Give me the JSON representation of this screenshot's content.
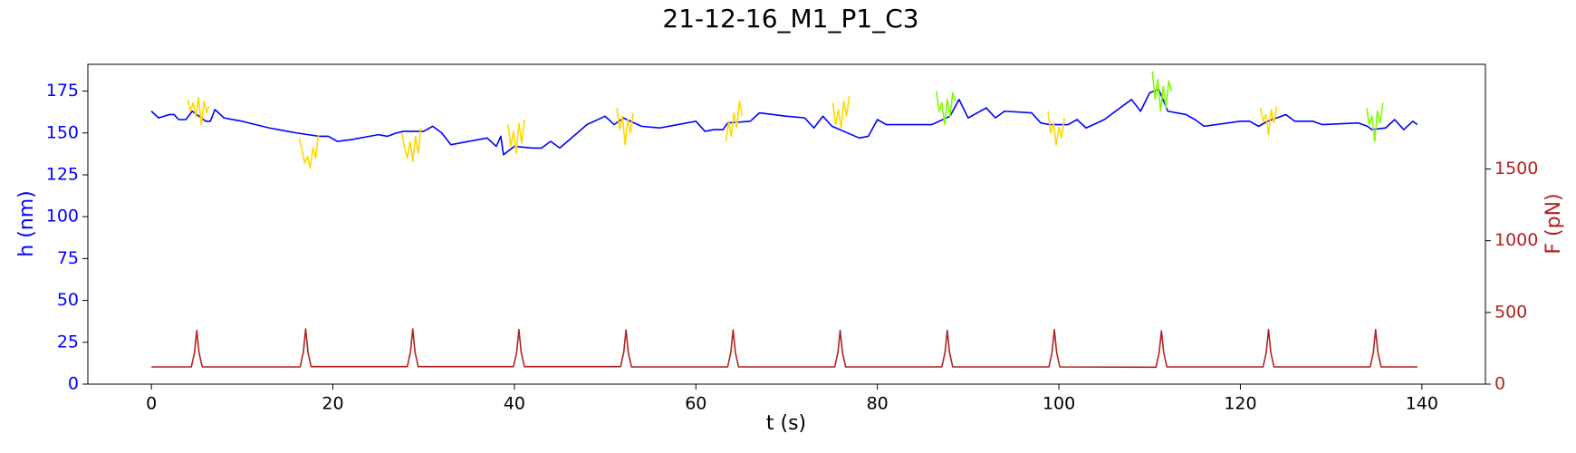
{
  "chart_data": {
    "type": "line",
    "title": "21-12-16_M1_P1_C3",
    "x_label": "t (s)",
    "y_label": "h (nm)",
    "y2_label": "F (pN)",
    "xlim": [
      -7,
      147
    ],
    "xticks": [
      0,
      20,
      40,
      60,
      80,
      100,
      120,
      140
    ],
    "ylim": [
      0,
      191
    ],
    "yticks": [
      0,
      25,
      50,
      75,
      100,
      125,
      150,
      175
    ],
    "y2lim": [
      0,
      2230
    ],
    "y2ticks": [
      0,
      500,
      1000,
      1500
    ],
    "y_color": "#0000ff",
    "y2_color": "#b22222",
    "series": [
      {
        "color": "#0000ff",
        "x": [
          0,
          0.8,
          2,
          2.5,
          3,
          3.8,
          4.5,
          6,
          6.5,
          7,
          8,
          10,
          13,
          15,
          16,
          18.5,
          19.5,
          20.5,
          22,
          25,
          26,
          27,
          27.8,
          30,
          31,
          32,
          33,
          37,
          38,
          38.5,
          38.8,
          40,
          42,
          43,
          44,
          45,
          48,
          50,
          51,
          52,
          54,
          56,
          58,
          60,
          61,
          62,
          63,
          63.5,
          66,
          67,
          70,
          72,
          73,
          74,
          75,
          78,
          79,
          80,
          81,
          84,
          86,
          88,
          89,
          90,
          92,
          93,
          94,
          97,
          98,
          99,
          101,
          102,
          103,
          105,
          108,
          109,
          110,
          111,
          112,
          114,
          115,
          116,
          120,
          121,
          122,
          123,
          125,
          126,
          128,
          129,
          133,
          134,
          134.5,
          136,
          137,
          138,
          139,
          139.5
        ],
        "values": [
          163,
          159,
          161,
          161,
          158,
          158,
          163,
          157,
          157,
          164,
          159,
          157,
          153,
          151,
          150,
          148,
          148,
          145,
          146,
          149,
          148,
          150,
          151,
          151,
          154,
          150,
          143,
          147,
          142,
          148,
          137,
          142,
          141,
          141,
          145,
          141,
          155,
          160,
          155,
          159,
          154,
          153,
          155,
          157,
          151,
          152,
          152,
          156,
          157,
          162,
          160,
          159,
          153,
          160,
          154,
          147,
          148,
          158,
          155,
          155,
          155,
          160,
          170,
          159,
          165,
          159,
          163,
          162,
          156,
          155,
          155,
          158,
          153,
          158,
          170,
          163,
          174,
          176,
          163,
          161,
          158,
          154,
          157,
          157,
          154,
          157,
          161,
          157,
          157,
          155,
          156,
          154,
          152,
          153,
          158,
          152,
          157,
          155
        ]
      },
      {
        "color": "#ffd700",
        "x": [
          4,
          4.3,
          4.6,
          4.9,
          5.2,
          5.5,
          5.8,
          6.1,
          6.3
        ],
        "values": [
          170,
          163,
          168,
          160,
          171,
          155,
          169,
          162,
          166
        ]
      },
      {
        "color": "#ffd700",
        "x": [
          16.3,
          16.6,
          16.9,
          17.2,
          17.5,
          17.8,
          18.1,
          18.4
        ],
        "values": [
          147,
          140,
          132,
          136,
          129,
          141,
          135,
          149
        ]
      },
      {
        "color": "#ffd700",
        "x": [
          27.6,
          27.9,
          28.2,
          28.5,
          28.8,
          29.1,
          29.4,
          29.7
        ],
        "values": [
          150,
          141,
          135,
          145,
          133,
          148,
          138,
          153
        ]
      },
      {
        "color": "#ffd700",
        "x": [
          39.3,
          39.6,
          39.9,
          40.2,
          40.5,
          40.8,
          41.1
        ],
        "values": [
          155,
          142,
          151,
          138,
          156,
          144,
          158
        ]
      },
      {
        "color": "#ffd700",
        "x": [
          51.3,
          51.6,
          51.9,
          52.2,
          52.5,
          52.8,
          53.1
        ],
        "values": [
          165,
          152,
          160,
          143,
          158,
          150,
          162
        ]
      },
      {
        "color": "#ffd700",
        "x": [
          63.3,
          63.6,
          63.9,
          64.2,
          64.5,
          64.8,
          65.1
        ],
        "values": [
          145,
          157,
          148,
          162,
          153,
          169,
          160
        ]
      },
      {
        "color": "#ffd700",
        "x": [
          75.1,
          75.4,
          75.7,
          76,
          76.3,
          76.6,
          76.9
        ],
        "values": [
          168,
          155,
          164,
          153,
          169,
          160,
          172
        ]
      },
      {
        "color": "#7cfc00",
        "x": [
          86.5,
          86.8,
          87.1,
          87.4,
          87.7,
          88,
          88.3,
          88.6
        ],
        "values": [
          175,
          163,
          168,
          155,
          170,
          160,
          174,
          169
        ]
      },
      {
        "color": "#ffd700",
        "x": [
          98.8,
          99.1,
          99.4,
          99.7,
          100,
          100.3,
          100.6
        ],
        "values": [
          163,
          150,
          156,
          143,
          153,
          147,
          159
        ]
      },
      {
        "color": "#7cfc00",
        "x": [
          110.3,
          110.6,
          110.9,
          111.2,
          111.5,
          111.8,
          112.1,
          112.4
        ],
        "values": [
          187,
          170,
          182,
          163,
          178,
          165,
          181,
          175
        ]
      },
      {
        "color": "#ffd700",
        "x": [
          122.2,
          122.5,
          122.8,
          123.1,
          123.4,
          123.7,
          124
        ],
        "values": [
          165,
          157,
          161,
          149,
          164,
          156,
          166
        ]
      },
      {
        "color": "#7cfc00",
        "x": [
          133.9,
          134.2,
          134.5,
          134.8,
          135.1,
          135.4,
          135.7
        ],
        "values": [
          165,
          155,
          160,
          145,
          163,
          156,
          168
        ]
      },
      {
        "color": "#b22222",
        "axis": "y2",
        "x": [
          0,
          4.4,
          4.75,
          5,
          5.25,
          5.6,
          16.4,
          16.75,
          17,
          17.25,
          17.6,
          28.2,
          28.55,
          28.8,
          29.05,
          29.4,
          39.9,
          40.25,
          40.5,
          40.75,
          41.1,
          51.7,
          52.05,
          52.3,
          52.55,
          52.9,
          63.5,
          63.85,
          64.1,
          64.35,
          64.7,
          75.3,
          75.65,
          75.9,
          76.15,
          76.5,
          87.1,
          87.45,
          87.7,
          87.95,
          88.3,
          98.9,
          99.25,
          99.5,
          99.75,
          100.1,
          110.7,
          111.05,
          111.3,
          111.55,
          111.9,
          122.5,
          122.85,
          123.1,
          123.35,
          123.7,
          134.3,
          134.65,
          134.9,
          135.15,
          135.5,
          139.5
        ],
        "values": [
          120,
          120,
          220,
          375,
          220,
          120,
          120,
          225,
          385,
          225,
          122,
          122,
          225,
          385,
          225,
          122,
          122,
          222,
          380,
          222,
          122,
          122,
          222,
          378,
          222,
          120,
          120,
          222,
          378,
          222,
          120,
          120,
          220,
          375,
          220,
          120,
          120,
          220,
          375,
          220,
          120,
          120,
          222,
          380,
          222,
          120,
          118,
          220,
          372,
          220,
          120,
          120,
          222,
          380,
          222,
          120,
          120,
          222,
          380,
          222,
          120,
          120
        ]
      }
    ]
  }
}
